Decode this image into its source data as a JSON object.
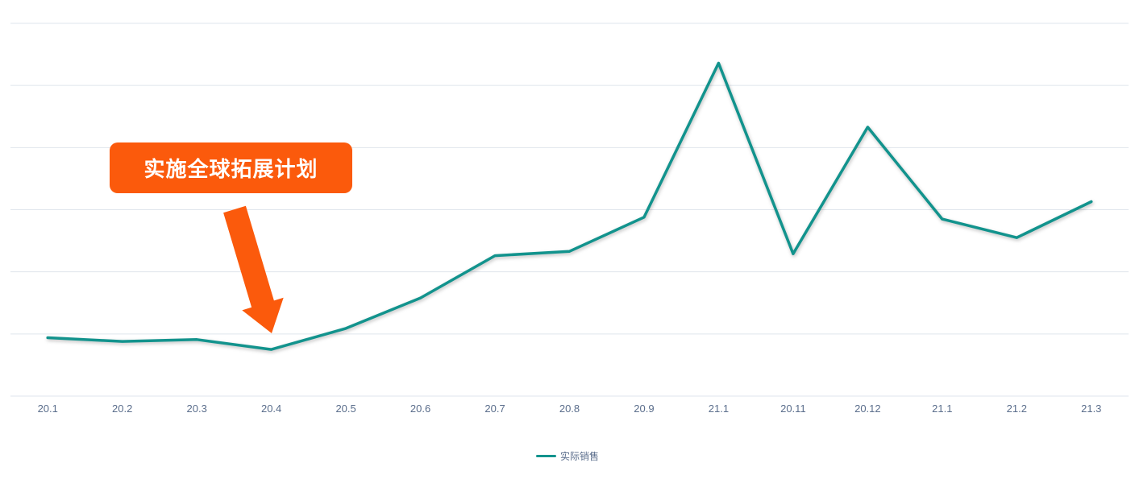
{
  "colors": {
    "line": "#12938d",
    "annotation_bg": "#fb5a0c",
    "annotation_text": "#ffffff",
    "gridline": "#dfe5ec",
    "axis_label": "#5b6e8c"
  },
  "annotation": {
    "label": "实施全球拓展计划"
  },
  "legend": {
    "items": [
      {
        "label": "实际销售",
        "color": "#12938d"
      }
    ]
  },
  "chart_data": {
    "type": "line",
    "title": "",
    "xlabel": "",
    "ylabel": "",
    "categories": [
      "20.1",
      "20.2",
      "20.3",
      "20.4",
      "20.5",
      "20.6",
      "20.7",
      "20.8",
      "20.9",
      "21.1",
      "20.11",
      "20.12",
      "21.1",
      "21.2",
      "21.3"
    ],
    "series": [
      {
        "name": "实际销售",
        "color": "#12938d",
        "values": [
          0.94,
          0.88,
          0.91,
          0.75,
          1.09,
          1.58,
          2.26,
          2.33,
          2.88,
          5.36,
          2.29,
          4.33,
          2.85,
          2.55,
          3.13
        ]
      }
    ],
    "ylim": [
      0,
      6
    ],
    "grid_divisions": 6,
    "grid": true,
    "y_axis_labels_visible": false,
    "legend_position": "bottom",
    "annotation": {
      "text": "实施全球拓展计划",
      "points_to_category": "20.4"
    }
  }
}
